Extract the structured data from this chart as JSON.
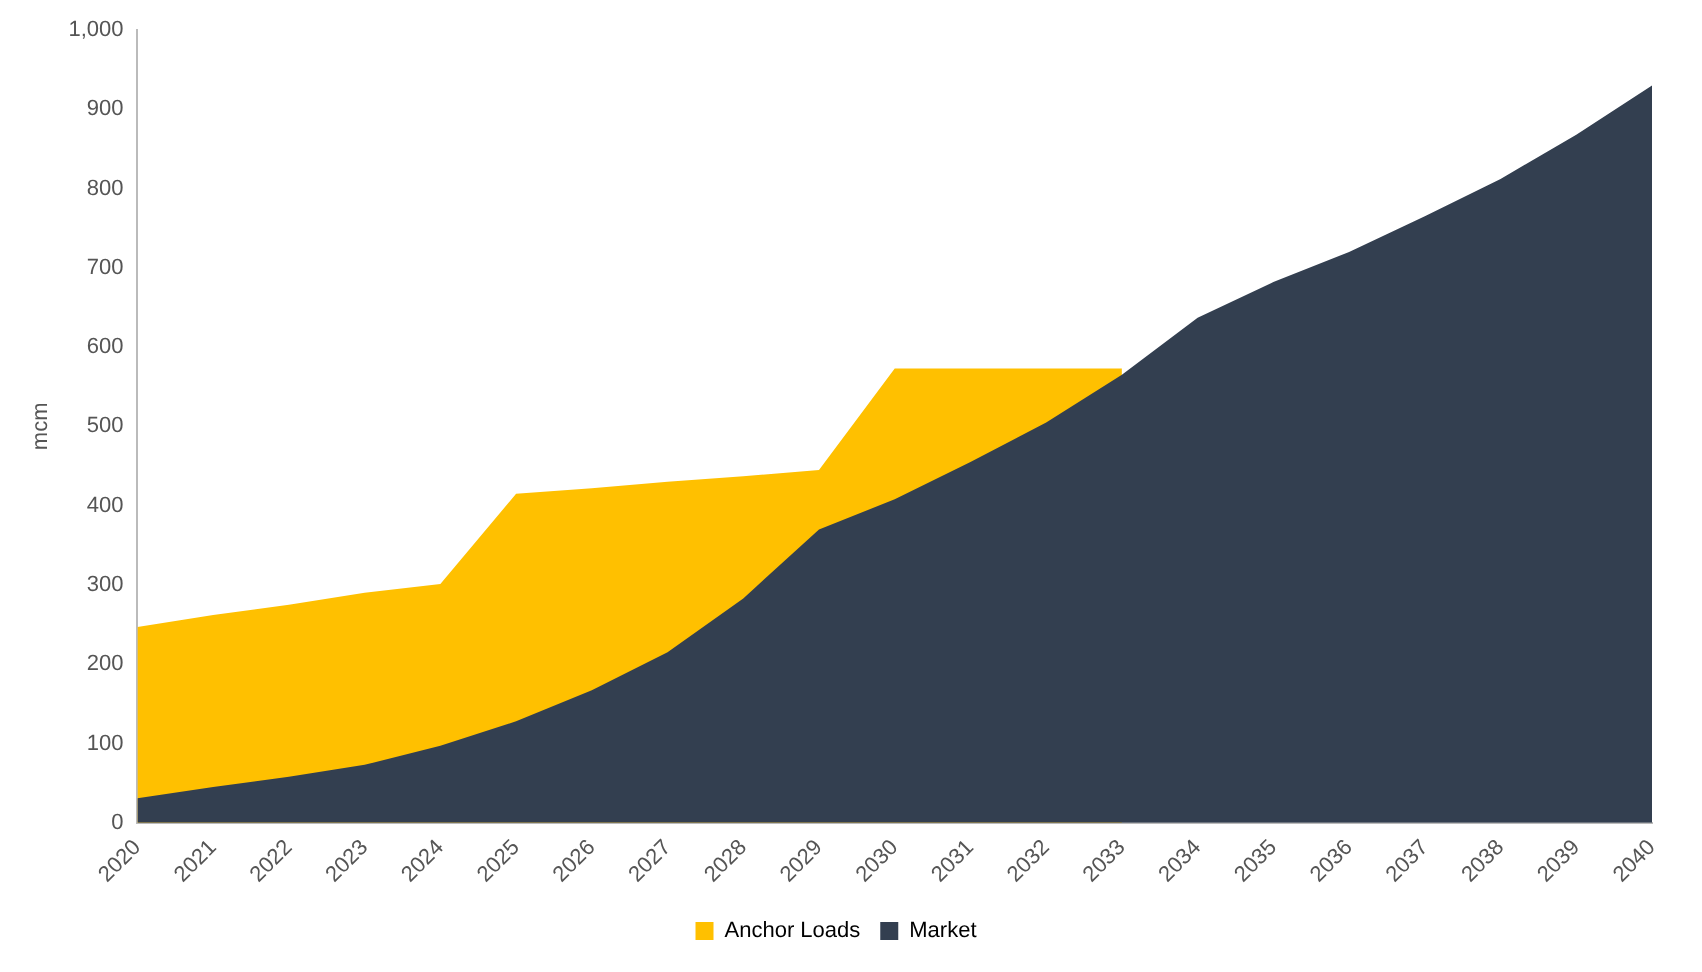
{
  "chart_data": {
    "type": "area",
    "ylabel": "mcm",
    "categories": [
      "2020",
      "2021",
      "2022",
      "2023",
      "2024",
      "2025",
      "2026",
      "2027",
      "2028",
      "2029",
      "2030",
      "2031",
      "2032",
      "2033",
      "2034",
      "2035",
      "2036",
      "2037",
      "2038",
      "2039",
      "2040"
    ],
    "series": [
      {
        "name": "Anchor Loads",
        "color": "#ffc000",
        "values": [
          247,
          262,
          275,
          290,
          301,
          415,
          422,
          430,
          437,
          445,
          573,
          573,
          573,
          573,
          null,
          null,
          null,
          null,
          null,
          null,
          null
        ]
      },
      {
        "name": "Market",
        "color": "#333f50",
        "values": [
          31,
          45,
          58,
          73,
          97,
          128,
          167,
          215,
          283,
          370,
          408,
          455,
          505,
          565,
          637,
          682,
          720,
          765,
          812,
          868,
          930
        ]
      }
    ],
    "ylim": [
      0,
      1000
    ],
    "yticks": [
      0,
      100,
      200,
      300,
      400,
      500,
      600,
      700,
      800,
      900,
      {
        "value": 1000,
        "label": "1,000"
      }
    ],
    "grid": false,
    "legend": "bottom"
  }
}
